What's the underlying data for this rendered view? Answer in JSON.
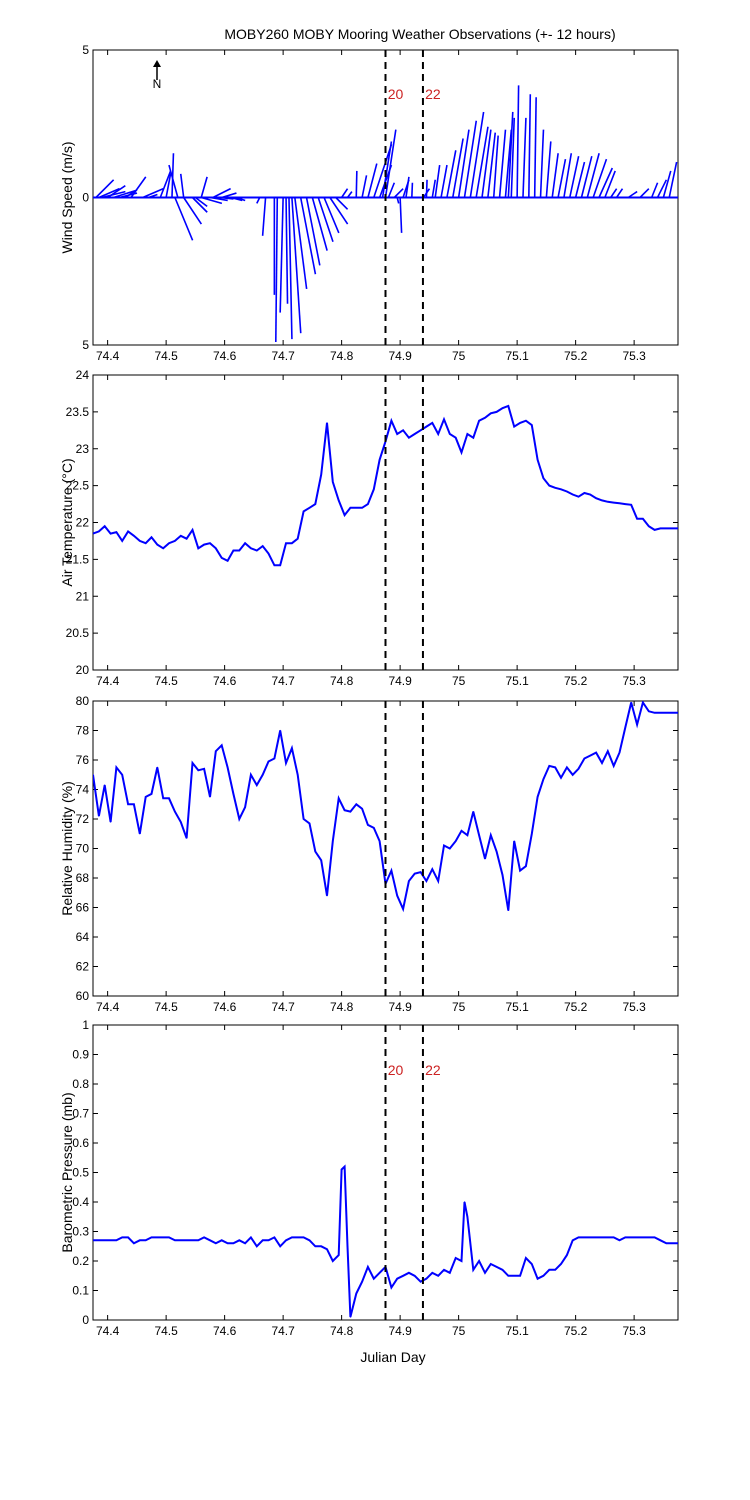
{
  "title": "MOBY260 MOBY Mooring Weather Observations (+- 12 hours)",
  "xlabel": "Julian Day",
  "x_ticks": [
    "74.4",
    "74.5",
    "74.6",
    "74.7",
    "74.8",
    "74.9",
    "75",
    "75.1",
    "75.2",
    "75.3"
  ],
  "north_label": "N",
  "markers": [
    {
      "label": "20",
      "x": 74.875
    },
    {
      "label": "22",
      "x": 74.939
    }
  ],
  "colors": {
    "data": "#0000ff",
    "marker_text": "#cc2222",
    "axis": "#000000"
  },
  "chart_data": [
    {
      "type": "wind-sticks",
      "ylabel": "Wind Speed (m/s)",
      "ylim": [
        -5,
        5
      ],
      "y_ticks": [
        "5",
        "0",
        "5"
      ],
      "xlim": [
        74.375,
        75.375
      ],
      "sticks": [
        {
          "x": 74.38,
          "u": 0.6,
          "v": 0.6
        },
        {
          "x": 74.385,
          "u": 0.7,
          "v": 0.3
        },
        {
          "x": 74.39,
          "u": 0.8,
          "v": 0.2
        },
        {
          "x": 74.4,
          "u": 0.6,
          "v": 0.4
        },
        {
          "x": 74.41,
          "u": 0.8,
          "v": 0.25
        },
        {
          "x": 74.42,
          "u": 0.6,
          "v": 0.15
        },
        {
          "x": 74.43,
          "u": 0.3,
          "v": 0.2
        },
        {
          "x": 74.44,
          "u": 0.5,
          "v": 0.7
        },
        {
          "x": 74.46,
          "u": 0.7,
          "v": 0.3
        },
        {
          "x": 74.47,
          "u": 0.3,
          "v": 0.1
        },
        {
          "x": 74.49,
          "u": 0.35,
          "v": 0.9
        },
        {
          "x": 74.5,
          "u": 0.15,
          "v": 0.8
        },
        {
          "x": 74.51,
          "u": 0.05,
          "v": 1.5
        },
        {
          "x": 74.52,
          "u": -0.3,
          "v": 1.1
        },
        {
          "x": 74.53,
          "u": -0.1,
          "v": 0.8
        },
        {
          "x": 74.515,
          "u": 0.6,
          "v": -1.45
        },
        {
          "x": 74.53,
          "u": 0.6,
          "v": -0.9
        },
        {
          "x": 74.545,
          "u": 0.5,
          "v": -0.5
        },
        {
          "x": 74.55,
          "u": 0.4,
          "v": -0.3
        },
        {
          "x": 74.56,
          "u": 0.7,
          "v": -0.2
        },
        {
          "x": 74.575,
          "u": 0.6,
          "v": -0.1
        },
        {
          "x": 74.59,
          "u": 0.5,
          "v": -0.05
        },
        {
          "x": 74.56,
          "u": 0.2,
          "v": 0.7
        },
        {
          "x": 74.58,
          "u": 0.6,
          "v": 0.3
        },
        {
          "x": 74.595,
          "u": 0.5,
          "v": 0.15
        },
        {
          "x": 74.61,
          "u": 0.4,
          "v": -0.1
        },
        {
          "x": 74.62,
          "u": 0.3,
          "v": -0.1
        },
        {
          "x": 74.635,
          "u": 0.2,
          "v": 0
        },
        {
          "x": 74.65,
          "u": 0.1,
          "v": 0
        },
        {
          "x": 74.66,
          "u": -0.1,
          "v": -0.2
        },
        {
          "x": 74.67,
          "u": -0.1,
          "v": -1.3
        },
        {
          "x": 74.685,
          "u": 0,
          "v": -3.3
        },
        {
          "x": 74.69,
          "u": -0.05,
          "v": -4.9
        },
        {
          "x": 74.7,
          "u": -0.1,
          "v": -3.9
        },
        {
          "x": 74.705,
          "u": 0.05,
          "v": -3.6
        },
        {
          "x": 74.71,
          "u": 0.1,
          "v": -4.8
        },
        {
          "x": 74.715,
          "u": 0.3,
          "v": -4.6
        },
        {
          "x": 74.72,
          "u": 0.4,
          "v": -3.1
        },
        {
          "x": 74.73,
          "u": 0.5,
          "v": -2.6
        },
        {
          "x": 74.74,
          "u": 0.45,
          "v": -2.3
        },
        {
          "x": 74.75,
          "u": 0.5,
          "v": -1.8
        },
        {
          "x": 74.76,
          "u": 0.5,
          "v": -1.5
        },
        {
          "x": 74.77,
          "u": 0.5,
          "v": -1.2
        },
        {
          "x": 74.78,
          "u": 0.6,
          "v": -0.9
        },
        {
          "x": 74.79,
          "u": 0.4,
          "v": -0.4
        },
        {
          "x": 74.8,
          "u": 0.2,
          "v": 0.3
        },
        {
          "x": 74.81,
          "u": 0.15,
          "v": 0.2
        },
        {
          "x": 74.825,
          "u": 0.02,
          "v": 0.9
        },
        {
          "x": 74.835,
          "u": 0.15,
          "v": 0.75
        },
        {
          "x": 74.845,
          "u": 0.3,
          "v": 1.15
        },
        {
          "x": 74.855,
          "u": 0.6,
          "v": 1.8
        },
        {
          "x": 74.865,
          "u": 0.4,
          "v": 1.1
        },
        {
          "x": 74.87,
          "u": 0.3,
          "v": 1.9
        },
        {
          "x": 74.875,
          "u": 0.35,
          "v": 2.3
        },
        {
          "x": 74.88,
          "u": 0.2,
          "v": 0.5
        },
        {
          "x": 74.89,
          "u": 0.3,
          "v": 0.3
        },
        {
          "x": 74.895,
          "u": 0.05,
          "v": -0.2
        },
        {
          "x": 74.9,
          "u": 0.05,
          "v": -1.2
        },
        {
          "x": 74.905,
          "u": 0.2,
          "v": 0.6
        },
        {
          "x": 74.91,
          "u": 0.1,
          "v": 0.7
        },
        {
          "x": 74.92,
          "u": 0.02,
          "v": 0.5
        },
        {
          "x": 74.94,
          "u": 0.2,
          "v": 0.3
        },
        {
          "x": 74.945,
          "u": 0.02,
          "v": 0.6
        },
        {
          "x": 74.955,
          "u": 0.1,
          "v": 0.6
        },
        {
          "x": 74.96,
          "u": 0.15,
          "v": 1.1
        },
        {
          "x": 74.97,
          "u": 0.2,
          "v": 1.1
        },
        {
          "x": 74.98,
          "u": 0.3,
          "v": 1.6
        },
        {
          "x": 74.99,
          "u": 0.35,
          "v": 2.0
        },
        {
          "x": 75.0,
          "u": 0.35,
          "v": 2.3
        },
        {
          "x": 75.01,
          "u": 0.4,
          "v": 2.6
        },
        {
          "x": 75.02,
          "u": 0.45,
          "v": 2.9
        },
        {
          "x": 75.03,
          "u": 0.4,
          "v": 2.4
        },
        {
          "x": 75.04,
          "u": 0.3,
          "v": 2.3
        },
        {
          "x": 75.05,
          "u": 0.25,
          "v": 2.2
        },
        {
          "x": 75.06,
          "u": 0.15,
          "v": 2.1
        },
        {
          "x": 75.07,
          "u": 0.2,
          "v": 2.3
        },
        {
          "x": 75.08,
          "u": 0.2,
          "v": 2.3
        },
        {
          "x": 75.085,
          "u": 0.15,
          "v": 2.9
        },
        {
          "x": 75.09,
          "u": 0.1,
          "v": 2.7
        },
        {
          "x": 75.1,
          "u": 0.05,
          "v": 3.8
        },
        {
          "x": 75.11,
          "u": 0.1,
          "v": 2.7
        },
        {
          "x": 75.12,
          "u": 0.05,
          "v": 3.5
        },
        {
          "x": 75.13,
          "u": 0.05,
          "v": 3.4
        },
        {
          "x": 75.14,
          "u": 0.1,
          "v": 2.3
        },
        {
          "x": 75.15,
          "u": 0.15,
          "v": 1.9
        },
        {
          "x": 75.16,
          "u": 0.2,
          "v": 1.5
        },
        {
          "x": 75.17,
          "u": 0.25,
          "v": 1.3
        },
        {
          "x": 75.18,
          "u": 0.25,
          "v": 1.5
        },
        {
          "x": 75.19,
          "u": 0.3,
          "v": 1.4
        },
        {
          "x": 75.2,
          "u": 0.3,
          "v": 1.2
        },
        {
          "x": 75.21,
          "u": 0.35,
          "v": 1.4
        },
        {
          "x": 75.22,
          "u": 0.4,
          "v": 1.5
        },
        {
          "x": 75.23,
          "u": 0.45,
          "v": 1.3
        },
        {
          "x": 75.24,
          "u": 0.45,
          "v": 1.0
        },
        {
          "x": 75.25,
          "u": 0.35,
          "v": 0.9
        },
        {
          "x": 75.26,
          "u": 0.2,
          "v": 0.3
        },
        {
          "x": 75.27,
          "u": 0.2,
          "v": 0.3
        },
        {
          "x": 75.29,
          "u": 0.3,
          "v": 0.2
        },
        {
          "x": 75.31,
          "u": 0.3,
          "v": 0.3
        },
        {
          "x": 75.33,
          "u": 0.2,
          "v": 0.5
        },
        {
          "x": 75.34,
          "u": 0.3,
          "v": 0.6
        },
        {
          "x": 75.35,
          "u": 0.25,
          "v": 0.9
        },
        {
          "x": 75.36,
          "u": 0.25,
          "v": 1.2
        }
      ]
    },
    {
      "type": "line",
      "ylabel": "Air Temperature (°C)",
      "ylim": [
        20,
        24
      ],
      "y_ticks": [
        "20",
        "20.5",
        "21",
        "21.5",
        "22",
        "22.5",
        "23",
        "23.5",
        "24"
      ],
      "xlim": [
        74.375,
        75.375
      ],
      "x": [
        74.375,
        74.385,
        74.395,
        74.405,
        74.415,
        74.425,
        74.435,
        74.445,
        74.455,
        74.465,
        74.475,
        74.485,
        74.495,
        74.505,
        74.515,
        74.525,
        74.535,
        74.545,
        74.555,
        74.565,
        74.575,
        74.585,
        74.595,
        74.605,
        74.615,
        74.625,
        74.635,
        74.645,
        74.655,
        74.665,
        74.675,
        74.685,
        74.695,
        74.705,
        74.715,
        74.725,
        74.735,
        74.745,
        74.755,
        74.765,
        74.775,
        74.785,
        74.795,
        74.805,
        74.815,
        74.825,
        74.835,
        74.845,
        74.855,
        74.865,
        74.875,
        74.885,
        74.895,
        74.905,
        74.915,
        74.925,
        74.935,
        74.945,
        74.955,
        74.965,
        74.975,
        74.985,
        74.995,
        75.005,
        75.015,
        75.025,
        75.035,
        75.045,
        75.055,
        75.065,
        75.075,
        75.085,
        75.095,
        75.105,
        75.115,
        75.125,
        75.135,
        75.145,
        75.155,
        75.165,
        75.175,
        75.185,
        75.195,
        75.205,
        75.215,
        75.225,
        75.235,
        75.245,
        75.255,
        75.265,
        75.275,
        75.285,
        75.295,
        75.305,
        75.315,
        75.325,
        75.335,
        75.345,
        75.355,
        75.365,
        75.375
      ],
      "y": [
        21.85,
        21.88,
        21.95,
        21.85,
        21.87,
        21.75,
        21.88,
        21.82,
        21.75,
        21.72,
        21.8,
        21.7,
        21.65,
        21.72,
        21.75,
        21.82,
        21.78,
        21.9,
        21.65,
        21.7,
        21.72,
        21.65,
        21.52,
        21.48,
        21.62,
        21.62,
        21.72,
        21.65,
        21.62,
        21.68,
        21.58,
        21.42,
        21.42,
        21.72,
        21.72,
        21.78,
        22.15,
        22.2,
        22.25,
        22.65,
        23.35,
        22.55,
        22.3,
        22.1,
        22.2,
        22.2,
        22.2,
        22.25,
        22.45,
        22.85,
        23.1,
        23.38,
        23.2,
        23.25,
        23.15,
        23.2,
        23.25,
        23.3,
        23.35,
        23.2,
        23.4,
        23.2,
        23.15,
        22.95,
        23.2,
        23.15,
        23.38,
        23.42,
        23.48,
        23.5,
        23.55,
        23.58,
        23.3,
        23.35,
        23.38,
        23.32,
        22.85,
        22.6,
        22.5,
        22.47,
        22.45,
        22.42,
        22.38,
        22.35,
        22.4,
        22.38,
        22.33,
        22.3,
        22.28,
        22.27,
        22.26,
        22.25,
        22.24,
        22.05,
        22.05,
        21.95,
        21.9,
        21.92,
        21.92,
        21.92,
        21.92
      ]
    },
    {
      "type": "line",
      "ylabel": "Relative Humidity (%)",
      "ylim": [
        60,
        80
      ],
      "y_ticks": [
        "60",
        "62",
        "64",
        "66",
        "68",
        "70",
        "72",
        "74",
        "76",
        "78",
        "80"
      ],
      "xlim": [
        74.375,
        75.375
      ],
      "x": [
        74.375,
        74.385,
        74.395,
        74.405,
        74.415,
        74.425,
        74.435,
        74.445,
        74.455,
        74.465,
        74.475,
        74.485,
        74.495,
        74.505,
        74.515,
        74.525,
        74.535,
        74.545,
        74.555,
        74.565,
        74.575,
        74.585,
        74.595,
        74.605,
        74.615,
        74.625,
        74.635,
        74.645,
        74.655,
        74.665,
        74.675,
        74.685,
        74.695,
        74.705,
        74.715,
        74.725,
        74.735,
        74.745,
        74.755,
        74.765,
        74.775,
        74.785,
        74.795,
        74.805,
        74.815,
        74.825,
        74.835,
        74.845,
        74.855,
        74.865,
        74.875,
        74.885,
        74.895,
        74.905,
        74.915,
        74.925,
        74.935,
        74.945,
        74.955,
        74.965,
        74.975,
        74.985,
        74.995,
        75.005,
        75.015,
        75.025,
        75.035,
        75.045,
        75.055,
        75.065,
        75.075,
        75.085,
        75.095,
        75.105,
        75.115,
        75.125,
        75.135,
        75.145,
        75.155,
        75.165,
        75.175,
        75.185,
        75.195,
        75.205,
        75.215,
        75.225,
        75.235,
        75.245,
        75.255,
        75.265,
        75.275,
        75.285,
        75.295,
        75.305,
        75.315,
        75.325,
        75.335,
        75.345,
        75.355,
        75.365,
        75.375
      ],
      "y": [
        75,
        72.2,
        74.3,
        71.8,
        75.5,
        75,
        73,
        73,
        71,
        73.5,
        73.7,
        75.5,
        73.4,
        73.4,
        72.5,
        71.8,
        70.7,
        75.8,
        75.3,
        75.4,
        73.5,
        76.6,
        77,
        75.5,
        73.7,
        72,
        72.8,
        75,
        74.3,
        75,
        75.9,
        76.1,
        78,
        75.8,
        76.8,
        75,
        72,
        71.7,
        69.8,
        69.2,
        66.8,
        70.5,
        73.4,
        72.6,
        72.5,
        73,
        72.7,
        71.6,
        71.4,
        70.5,
        67.6,
        68.5,
        66.8,
        65.9,
        67.8,
        68.3,
        68.4,
        67.8,
        68.6,
        67.8,
        70.2,
        70,
        70.5,
        71.2,
        70.9,
        72.5,
        70.9,
        69.3,
        70.9,
        69.8,
        68.2,
        65.8,
        70.5,
        68.5,
        68.8,
        71,
        73.5,
        74.7,
        75.6,
        75.5,
        74.8,
        75.5,
        75,
        75.4,
        76.1,
        76.3,
        76.5,
        75.8,
        76.6,
        75.6,
        76.5,
        78.2,
        79.9,
        78.4,
        79.9,
        79.3,
        79.2,
        79.2,
        79.2,
        79.2,
        79.2
      ]
    },
    {
      "type": "line",
      "ylabel": "Barometric Pressure (mb)",
      "ylim": [
        0,
        1
      ],
      "y_ticks": [
        "0",
        "0.1",
        "0.2",
        "0.3",
        "0.4",
        "0.5",
        "0.6",
        "0.7",
        "0.8",
        "0.9",
        "1"
      ],
      "xlim": [
        74.375,
        75.375
      ],
      "x": [
        74.375,
        74.385,
        74.395,
        74.405,
        74.415,
        74.425,
        74.435,
        74.445,
        74.455,
        74.465,
        74.475,
        74.485,
        74.495,
        74.505,
        74.515,
        74.525,
        74.535,
        74.545,
        74.555,
        74.565,
        74.575,
        74.585,
        74.595,
        74.605,
        74.615,
        74.625,
        74.635,
        74.645,
        74.655,
        74.665,
        74.675,
        74.685,
        74.695,
        74.705,
        74.715,
        74.725,
        74.735,
        74.745,
        74.755,
        74.765,
        74.775,
        74.785,
        74.795,
        74.8,
        74.805,
        74.81,
        74.815,
        74.825,
        74.835,
        74.845,
        74.855,
        74.865,
        74.875,
        74.885,
        74.895,
        74.905,
        74.915,
        74.925,
        74.935,
        74.945,
        74.955,
        74.965,
        74.975,
        74.985,
        74.995,
        75.005,
        75.01,
        75.015,
        75.025,
        75.035,
        75.045,
        75.055,
        75.065,
        75.075,
        75.085,
        75.095,
        75.105,
        75.115,
        75.125,
        75.135,
        75.145,
        75.155,
        75.165,
        75.175,
        75.185,
        75.195,
        75.205,
        75.215,
        75.225,
        75.235,
        75.245,
        75.255,
        75.265,
        75.275,
        75.285,
        75.295,
        75.305,
        75.315,
        75.325,
        75.335,
        75.345,
        75.355,
        75.365,
        75.375
      ],
      "y": [
        0.27,
        0.27,
        0.27,
        0.27,
        0.27,
        0.28,
        0.28,
        0.26,
        0.27,
        0.27,
        0.28,
        0.28,
        0.28,
        0.28,
        0.27,
        0.27,
        0.27,
        0.27,
        0.27,
        0.28,
        0.27,
        0.26,
        0.27,
        0.26,
        0.26,
        0.27,
        0.26,
        0.28,
        0.25,
        0.27,
        0.27,
        0.28,
        0.25,
        0.27,
        0.28,
        0.28,
        0.28,
        0.27,
        0.25,
        0.25,
        0.24,
        0.2,
        0.22,
        0.51,
        0.52,
        0.25,
        0.01,
        0.09,
        0.13,
        0.18,
        0.14,
        0.16,
        0.18,
        0.11,
        0.14,
        0.15,
        0.16,
        0.15,
        0.13,
        0.14,
        0.16,
        0.15,
        0.17,
        0.16,
        0.21,
        0.2,
        0.4,
        0.35,
        0.17,
        0.2,
        0.16,
        0.19,
        0.18,
        0.17,
        0.15,
        0.15,
        0.15,
        0.21,
        0.19,
        0.14,
        0.15,
        0.17,
        0.17,
        0.19,
        0.22,
        0.27,
        0.28,
        0.28,
        0.28,
        0.28,
        0.28,
        0.28,
        0.28,
        0.27,
        0.28,
        0.28,
        0.28,
        0.28,
        0.28,
        0.28,
        0.27,
        0.26,
        0.26,
        0.26
      ]
    }
  ]
}
